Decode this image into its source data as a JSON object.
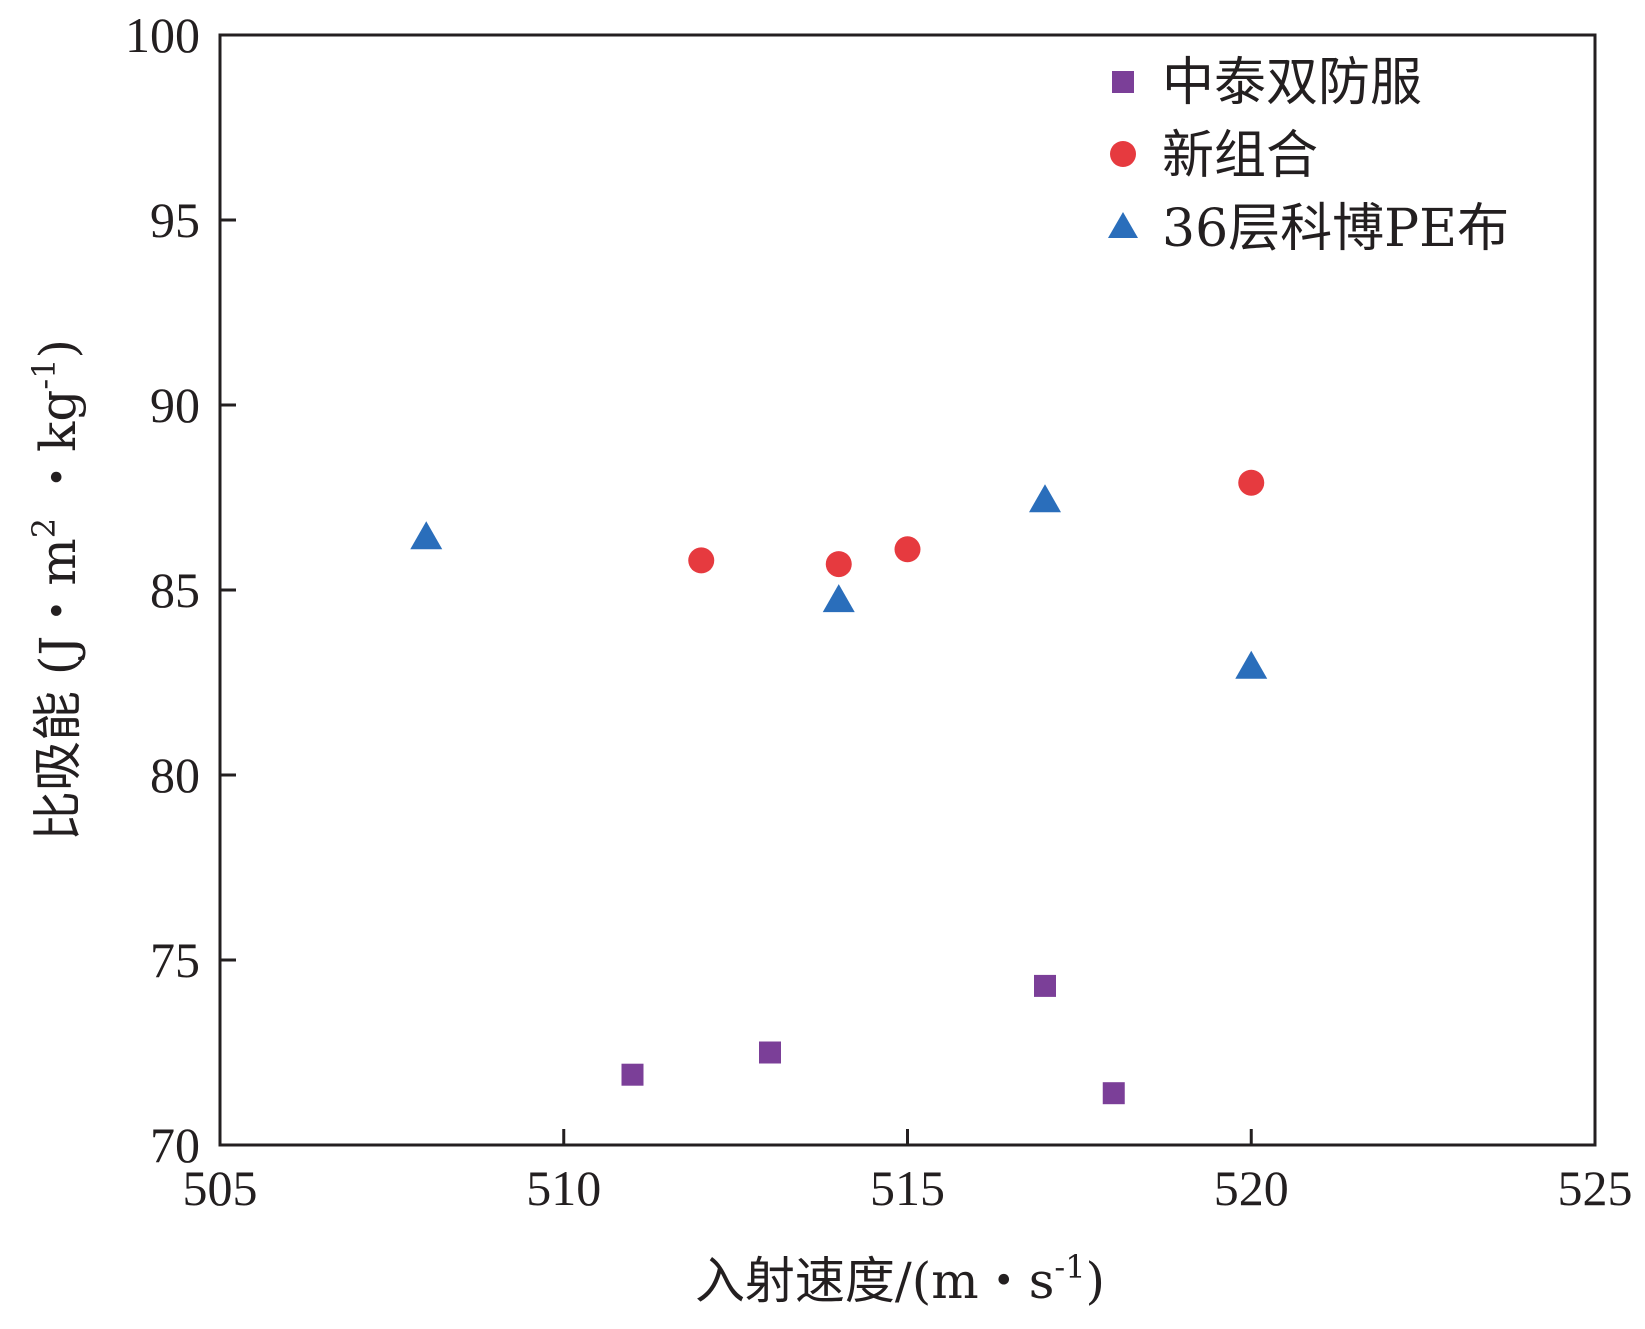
{
  "chart_data": {
    "type": "scatter",
    "xlabel_main": "入射速度/(m・s",
    "xlabel_sup": "-1",
    "xlabel_close": ")",
    "ylabel_main": "比吸能 (J・m",
    "ylabel_sup1": "2",
    "ylabel_mid": " ・kg",
    "ylabel_sup2": "-1",
    "ylabel_close": ")",
    "xlim": [
      505,
      525
    ],
    "ylim": [
      70,
      100
    ],
    "xticks": [
      505,
      510,
      515,
      520,
      525
    ],
    "yticks": [
      70,
      75,
      80,
      85,
      90,
      95,
      100
    ],
    "grid": false,
    "legend_position": "top-right",
    "series": [
      {
        "name": "中泰双防服",
        "marker": "square",
        "color": "#7b3f98",
        "x": [
          511,
          513,
          517,
          518
        ],
        "y": [
          71.9,
          72.5,
          74.3,
          71.4
        ]
      },
      {
        "name": "新组合",
        "marker": "circle",
        "color": "#e63a3f",
        "x": [
          512,
          514,
          515,
          520
        ],
        "y": [
          85.8,
          85.7,
          86.1,
          87.9
        ]
      },
      {
        "name": "36层科博PE布",
        "marker": "triangle",
        "color": "#2a6ebb",
        "x": [
          508,
          514,
          517,
          520
        ],
        "y": [
          86.4,
          84.7,
          87.4,
          82.9
        ]
      }
    ]
  }
}
